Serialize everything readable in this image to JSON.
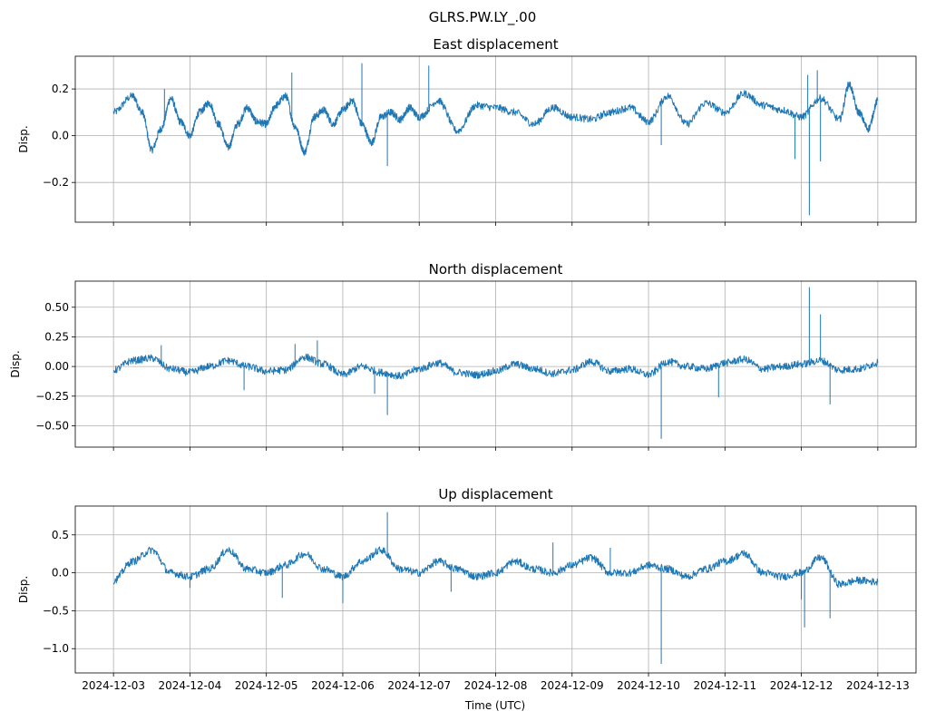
{
  "figure": {
    "title": "GLRS.PW.LY_.00",
    "xlabel": "Time (UTC)"
  },
  "colors": {
    "series": "#1f77b4",
    "grid": "#b0b0b0"
  },
  "chart_data": [
    {
      "type": "line",
      "title": "East displacement",
      "ylabel": "Disp.",
      "grid": true,
      "xlim": [
        "2024-12-02T12:00",
        "2024-12-13T12:00"
      ],
      "ylim": [
        -0.37,
        0.34
      ],
      "yticks": [
        -0.2,
        0.0,
        0.2
      ],
      "ytick_labels": [
        "−0.2",
        "0.0",
        "0.2"
      ],
      "xticks": [
        "2024-12-03",
        "2024-12-04",
        "2024-12-05",
        "2024-12-06",
        "2024-12-07",
        "2024-12-08",
        "2024-12-09",
        "2024-12-10",
        "2024-12-11",
        "2024-12-12",
        "2024-12-13"
      ],
      "xtick_labels": [],
      "series": [
        {
          "x": [
            "2024-12-03T00:00",
            "2024-12-03T06:00",
            "2024-12-03T09:00",
            "2024-12-03T12:00",
            "2024-12-03T15:00",
            "2024-12-03T18:00",
            "2024-12-03T21:00",
            "2024-12-04T00:00",
            "2024-12-04T03:00",
            "2024-12-04T06:00",
            "2024-12-04T09:00",
            "2024-12-04T12:00",
            "2024-12-04T15:00",
            "2024-12-04T18:00",
            "2024-12-04T21:00",
            "2024-12-05T00:00",
            "2024-12-05T03:00",
            "2024-12-05T06:00",
            "2024-12-05T09:00",
            "2024-12-05T12:00",
            "2024-12-05T15:00",
            "2024-12-05T18:00",
            "2024-12-05T21:00",
            "2024-12-06T00:00",
            "2024-12-06T03:00",
            "2024-12-06T06:00",
            "2024-12-06T09:00",
            "2024-12-06T12:00",
            "2024-12-06T15:00",
            "2024-12-06T18:00",
            "2024-12-06T21:00",
            "2024-12-07T00:00",
            "2024-12-07T06:00",
            "2024-12-07T12:00",
            "2024-12-07T18:00",
            "2024-12-08T00:00",
            "2024-12-08T06:00",
            "2024-12-08T12:00",
            "2024-12-08T18:00",
            "2024-12-09T00:00",
            "2024-12-09T06:00",
            "2024-12-09T12:00",
            "2024-12-09T18:00",
            "2024-12-10T00:00",
            "2024-12-10T06:00",
            "2024-12-10T12:00",
            "2024-12-10T18:00",
            "2024-12-11T00:00",
            "2024-12-11T06:00",
            "2024-12-11T12:00",
            "2024-12-11T18:00",
            "2024-12-12T00:00",
            "2024-12-12T06:00",
            "2024-12-12T12:00",
            "2024-12-12T15:00",
            "2024-12-12T18:00",
            "2024-12-12T21:00",
            "2024-12-13T00:00"
          ],
          "y": [
            0.1,
            0.17,
            0.1,
            -0.06,
            0.03,
            0.16,
            0.06,
            0.0,
            0.1,
            0.14,
            0.05,
            -0.05,
            0.05,
            0.12,
            0.06,
            0.05,
            0.13,
            0.17,
            0.04,
            -0.07,
            0.08,
            0.11,
            0.05,
            0.11,
            0.15,
            0.05,
            -0.03,
            0.08,
            0.1,
            0.07,
            0.12,
            0.08,
            0.15,
            0.02,
            0.13,
            0.12,
            0.1,
            0.05,
            0.12,
            0.08,
            0.07,
            0.1,
            0.12,
            0.06,
            0.17,
            0.05,
            0.14,
            0.1,
            0.18,
            0.13,
            0.11,
            0.08,
            0.16,
            0.07,
            0.22,
            0.1,
            0.03,
            0.15
          ]
        }
      ],
      "spikes": [
        {
          "x": "2024-12-03T16:00",
          "y": 0.2
        },
        {
          "x": "2024-12-05T08:00",
          "y": 0.27
        },
        {
          "x": "2024-12-06T06:00",
          "y": 0.31
        },
        {
          "x": "2024-12-06T14:00",
          "y": -0.13
        },
        {
          "x": "2024-12-07T03:00",
          "y": 0.3
        },
        {
          "x": "2024-12-10T04:00",
          "y": -0.04
        },
        {
          "x": "2024-12-11T22:00",
          "y": -0.1
        },
        {
          "x": "2024-12-12T02:00",
          "y": 0.26
        },
        {
          "x": "2024-12-12T02:30",
          "y": -0.34
        },
        {
          "x": "2024-12-12T05:00",
          "y": 0.28
        },
        {
          "x": "2024-12-12T06:00",
          "y": -0.11
        }
      ]
    },
    {
      "type": "line",
      "title": "North displacement",
      "ylabel": "Disp.",
      "grid": true,
      "xlim": [
        "2024-12-02T12:00",
        "2024-12-13T12:00"
      ],
      "ylim": [
        -0.68,
        0.72
      ],
      "yticks": [
        -0.5,
        -0.25,
        0.0,
        0.25,
        0.5
      ],
      "ytick_labels": [
        "−0.50",
        "−0.25",
        "0.00",
        "0.25",
        "0.50"
      ],
      "xticks": [
        "2024-12-03",
        "2024-12-04",
        "2024-12-05",
        "2024-12-06",
        "2024-12-07",
        "2024-12-08",
        "2024-12-09",
        "2024-12-10",
        "2024-12-11",
        "2024-12-12",
        "2024-12-13"
      ],
      "xtick_labels": [],
      "series": [
        {
          "x": [
            "2024-12-03T00:00",
            "2024-12-03T06:00",
            "2024-12-03T12:00",
            "2024-12-03T18:00",
            "2024-12-04T00:00",
            "2024-12-04T06:00",
            "2024-12-04T12:00",
            "2024-12-04T18:00",
            "2024-12-05T00:00",
            "2024-12-05T06:00",
            "2024-12-05T12:00",
            "2024-12-05T18:00",
            "2024-12-06T00:00",
            "2024-12-06T06:00",
            "2024-12-06T12:00",
            "2024-12-06T18:00",
            "2024-12-07T00:00",
            "2024-12-07T06:00",
            "2024-12-07T12:00",
            "2024-12-07T18:00",
            "2024-12-08T00:00",
            "2024-12-08T06:00",
            "2024-12-08T12:00",
            "2024-12-08T18:00",
            "2024-12-09T00:00",
            "2024-12-09T06:00",
            "2024-12-09T12:00",
            "2024-12-09T18:00",
            "2024-12-10T00:00",
            "2024-12-10T06:00",
            "2024-12-10T12:00",
            "2024-12-10T18:00",
            "2024-12-11T00:00",
            "2024-12-11T06:00",
            "2024-12-11T12:00",
            "2024-12-11T18:00",
            "2024-12-12T00:00",
            "2024-12-12T06:00",
            "2024-12-12T12:00",
            "2024-12-12T18:00",
            "2024-12-13T00:00"
          ],
          "y": [
            -0.03,
            0.05,
            0.07,
            -0.02,
            -0.05,
            0.0,
            0.05,
            0.0,
            -0.04,
            -0.03,
            0.08,
            0.02,
            -0.07,
            0.0,
            -0.05,
            -0.08,
            -0.02,
            0.03,
            -0.05,
            -0.07,
            -0.04,
            0.02,
            -0.02,
            -0.06,
            -0.03,
            0.04,
            -0.04,
            -0.02,
            -0.07,
            0.04,
            0.0,
            -0.02,
            0.03,
            0.06,
            -0.02,
            0.0,
            0.02,
            0.05,
            -0.03,
            -0.02,
            0.03
          ]
        }
      ],
      "spikes": [
        {
          "x": "2024-12-03T15:00",
          "y": 0.18
        },
        {
          "x": "2024-12-04T17:00",
          "y": -0.2
        },
        {
          "x": "2024-12-05T09:00",
          "y": 0.19
        },
        {
          "x": "2024-12-05T16:00",
          "y": 0.22
        },
        {
          "x": "2024-12-06T10:00",
          "y": -0.23
        },
        {
          "x": "2024-12-06T14:00",
          "y": -0.41
        },
        {
          "x": "2024-12-10T04:00",
          "y": -0.61
        },
        {
          "x": "2024-12-10T22:00",
          "y": -0.26
        },
        {
          "x": "2024-12-12T02:30",
          "y": 0.67
        },
        {
          "x": "2024-12-12T06:00",
          "y": 0.44
        },
        {
          "x": "2024-12-12T09:00",
          "y": -0.32
        }
      ]
    },
    {
      "type": "line",
      "title": "Up displacement",
      "ylabel": "Disp.",
      "grid": true,
      "xlim": [
        "2024-12-02T12:00",
        "2024-12-13T12:00"
      ],
      "ylim": [
        -1.32,
        0.88
      ],
      "yticks": [
        -1.0,
        -0.5,
        0.0,
        0.5
      ],
      "ytick_labels": [
        "−1.0",
        "−0.5",
        "0.0",
        "0.5"
      ],
      "xticks": [
        "2024-12-03",
        "2024-12-04",
        "2024-12-05",
        "2024-12-06",
        "2024-12-07",
        "2024-12-08",
        "2024-12-09",
        "2024-12-10",
        "2024-12-11",
        "2024-12-12",
        "2024-12-13"
      ],
      "xtick_labels": [
        "2024-12-03",
        "2024-12-04",
        "2024-12-05",
        "2024-12-06",
        "2024-12-07",
        "2024-12-08",
        "2024-12-09",
        "2024-12-10",
        "2024-12-11",
        "2024-12-12",
        "2024-12-13"
      ],
      "series": [
        {
          "x": [
            "2024-12-03T00:00",
            "2024-12-03T06:00",
            "2024-12-03T12:00",
            "2024-12-03T18:00",
            "2024-12-04T00:00",
            "2024-12-04T06:00",
            "2024-12-04T12:00",
            "2024-12-04T18:00",
            "2024-12-05T00:00",
            "2024-12-05T06:00",
            "2024-12-05T12:00",
            "2024-12-05T18:00",
            "2024-12-06T00:00",
            "2024-12-06T06:00",
            "2024-12-06T12:00",
            "2024-12-06T18:00",
            "2024-12-07T00:00",
            "2024-12-07T06:00",
            "2024-12-07T12:00",
            "2024-12-07T18:00",
            "2024-12-08T00:00",
            "2024-12-08T06:00",
            "2024-12-08T12:00",
            "2024-12-08T18:00",
            "2024-12-09T00:00",
            "2024-12-09T06:00",
            "2024-12-09T12:00",
            "2024-12-09T18:00",
            "2024-12-10T00:00",
            "2024-12-10T06:00",
            "2024-12-10T12:00",
            "2024-12-10T18:00",
            "2024-12-11T00:00",
            "2024-12-11T06:00",
            "2024-12-11T12:00",
            "2024-12-11T18:00",
            "2024-12-12T00:00",
            "2024-12-12T06:00",
            "2024-12-12T12:00",
            "2024-12-12T18:00",
            "2024-12-13T00:00"
          ],
          "y": [
            -0.1,
            0.15,
            0.3,
            0.0,
            -0.05,
            0.05,
            0.3,
            0.05,
            0.0,
            0.1,
            0.25,
            0.05,
            -0.05,
            0.15,
            0.3,
            0.05,
            0.0,
            0.15,
            0.05,
            -0.05,
            0.0,
            0.15,
            0.05,
            0.0,
            0.1,
            0.2,
            0.0,
            0.0,
            0.1,
            0.05,
            -0.05,
            0.05,
            0.15,
            0.25,
            0.0,
            -0.05,
            0.0,
            0.2,
            -0.15,
            -0.1,
            -0.12
          ]
        }
      ],
      "spikes": [
        {
          "x": "2024-12-04T00:00",
          "y": -0.2
        },
        {
          "x": "2024-12-05T05:00",
          "y": -0.33
        },
        {
          "x": "2024-12-06T00:00",
          "y": -0.4
        },
        {
          "x": "2024-12-06T14:00",
          "y": 0.8
        },
        {
          "x": "2024-12-07T10:00",
          "y": -0.25
        },
        {
          "x": "2024-12-08T18:00",
          "y": 0.4
        },
        {
          "x": "2024-12-09T12:00",
          "y": 0.33
        },
        {
          "x": "2024-12-10T04:00",
          "y": -1.2
        },
        {
          "x": "2024-12-11T06:00",
          "y": 0.3
        },
        {
          "x": "2024-12-12T00:00",
          "y": -0.35
        },
        {
          "x": "2024-12-12T01:00",
          "y": -0.72
        },
        {
          "x": "2024-12-12T09:00",
          "y": -0.6
        }
      ]
    }
  ]
}
